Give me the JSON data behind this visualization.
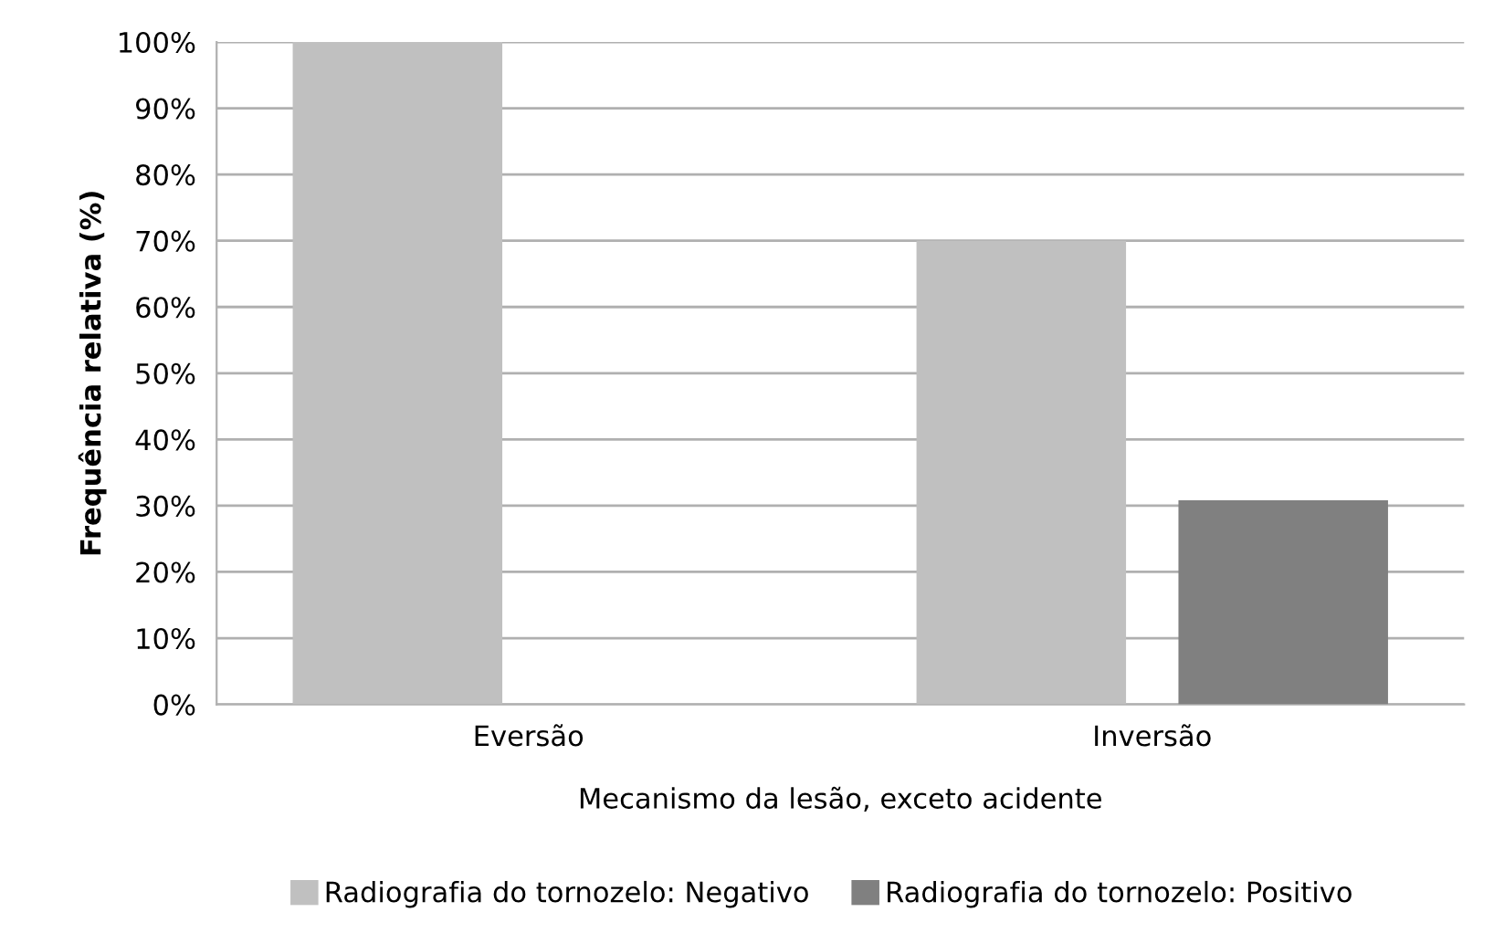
{
  "chart_data": {
    "type": "bar",
    "xlabel": "Mecanismo da lesão, exceto acidente",
    "ylabel": "Frequência relativa (%)",
    "categories": [
      "Eversão",
      "Inversão"
    ],
    "series": [
      {
        "name": "Radiografia do tornozelo: Negativo",
        "color": "#c0c0c0",
        "values": [
          100,
          70
        ]
      },
      {
        "name": "Radiografia do tornozelo: Positivo",
        "color": "#808080",
        "values": [
          0,
          30.8
        ]
      }
    ],
    "ylim": [
      0,
      100
    ],
    "yticks": [
      {
        "value": 0,
        "label": "0%"
      },
      {
        "value": 10,
        "label": "10%"
      },
      {
        "value": 20,
        "label": "20%"
      },
      {
        "value": 30,
        "label": "30%"
      },
      {
        "value": 40,
        "label": "40%"
      },
      {
        "value": 50,
        "label": "50%"
      },
      {
        "value": 60,
        "label": "60%"
      },
      {
        "value": 70,
        "label": "70%"
      },
      {
        "value": 80,
        "label": "80%"
      },
      {
        "value": 90,
        "label": "90%"
      },
      {
        "value": 100,
        "label": "100%"
      }
    ],
    "grid": "y",
    "legend": "bottom"
  }
}
